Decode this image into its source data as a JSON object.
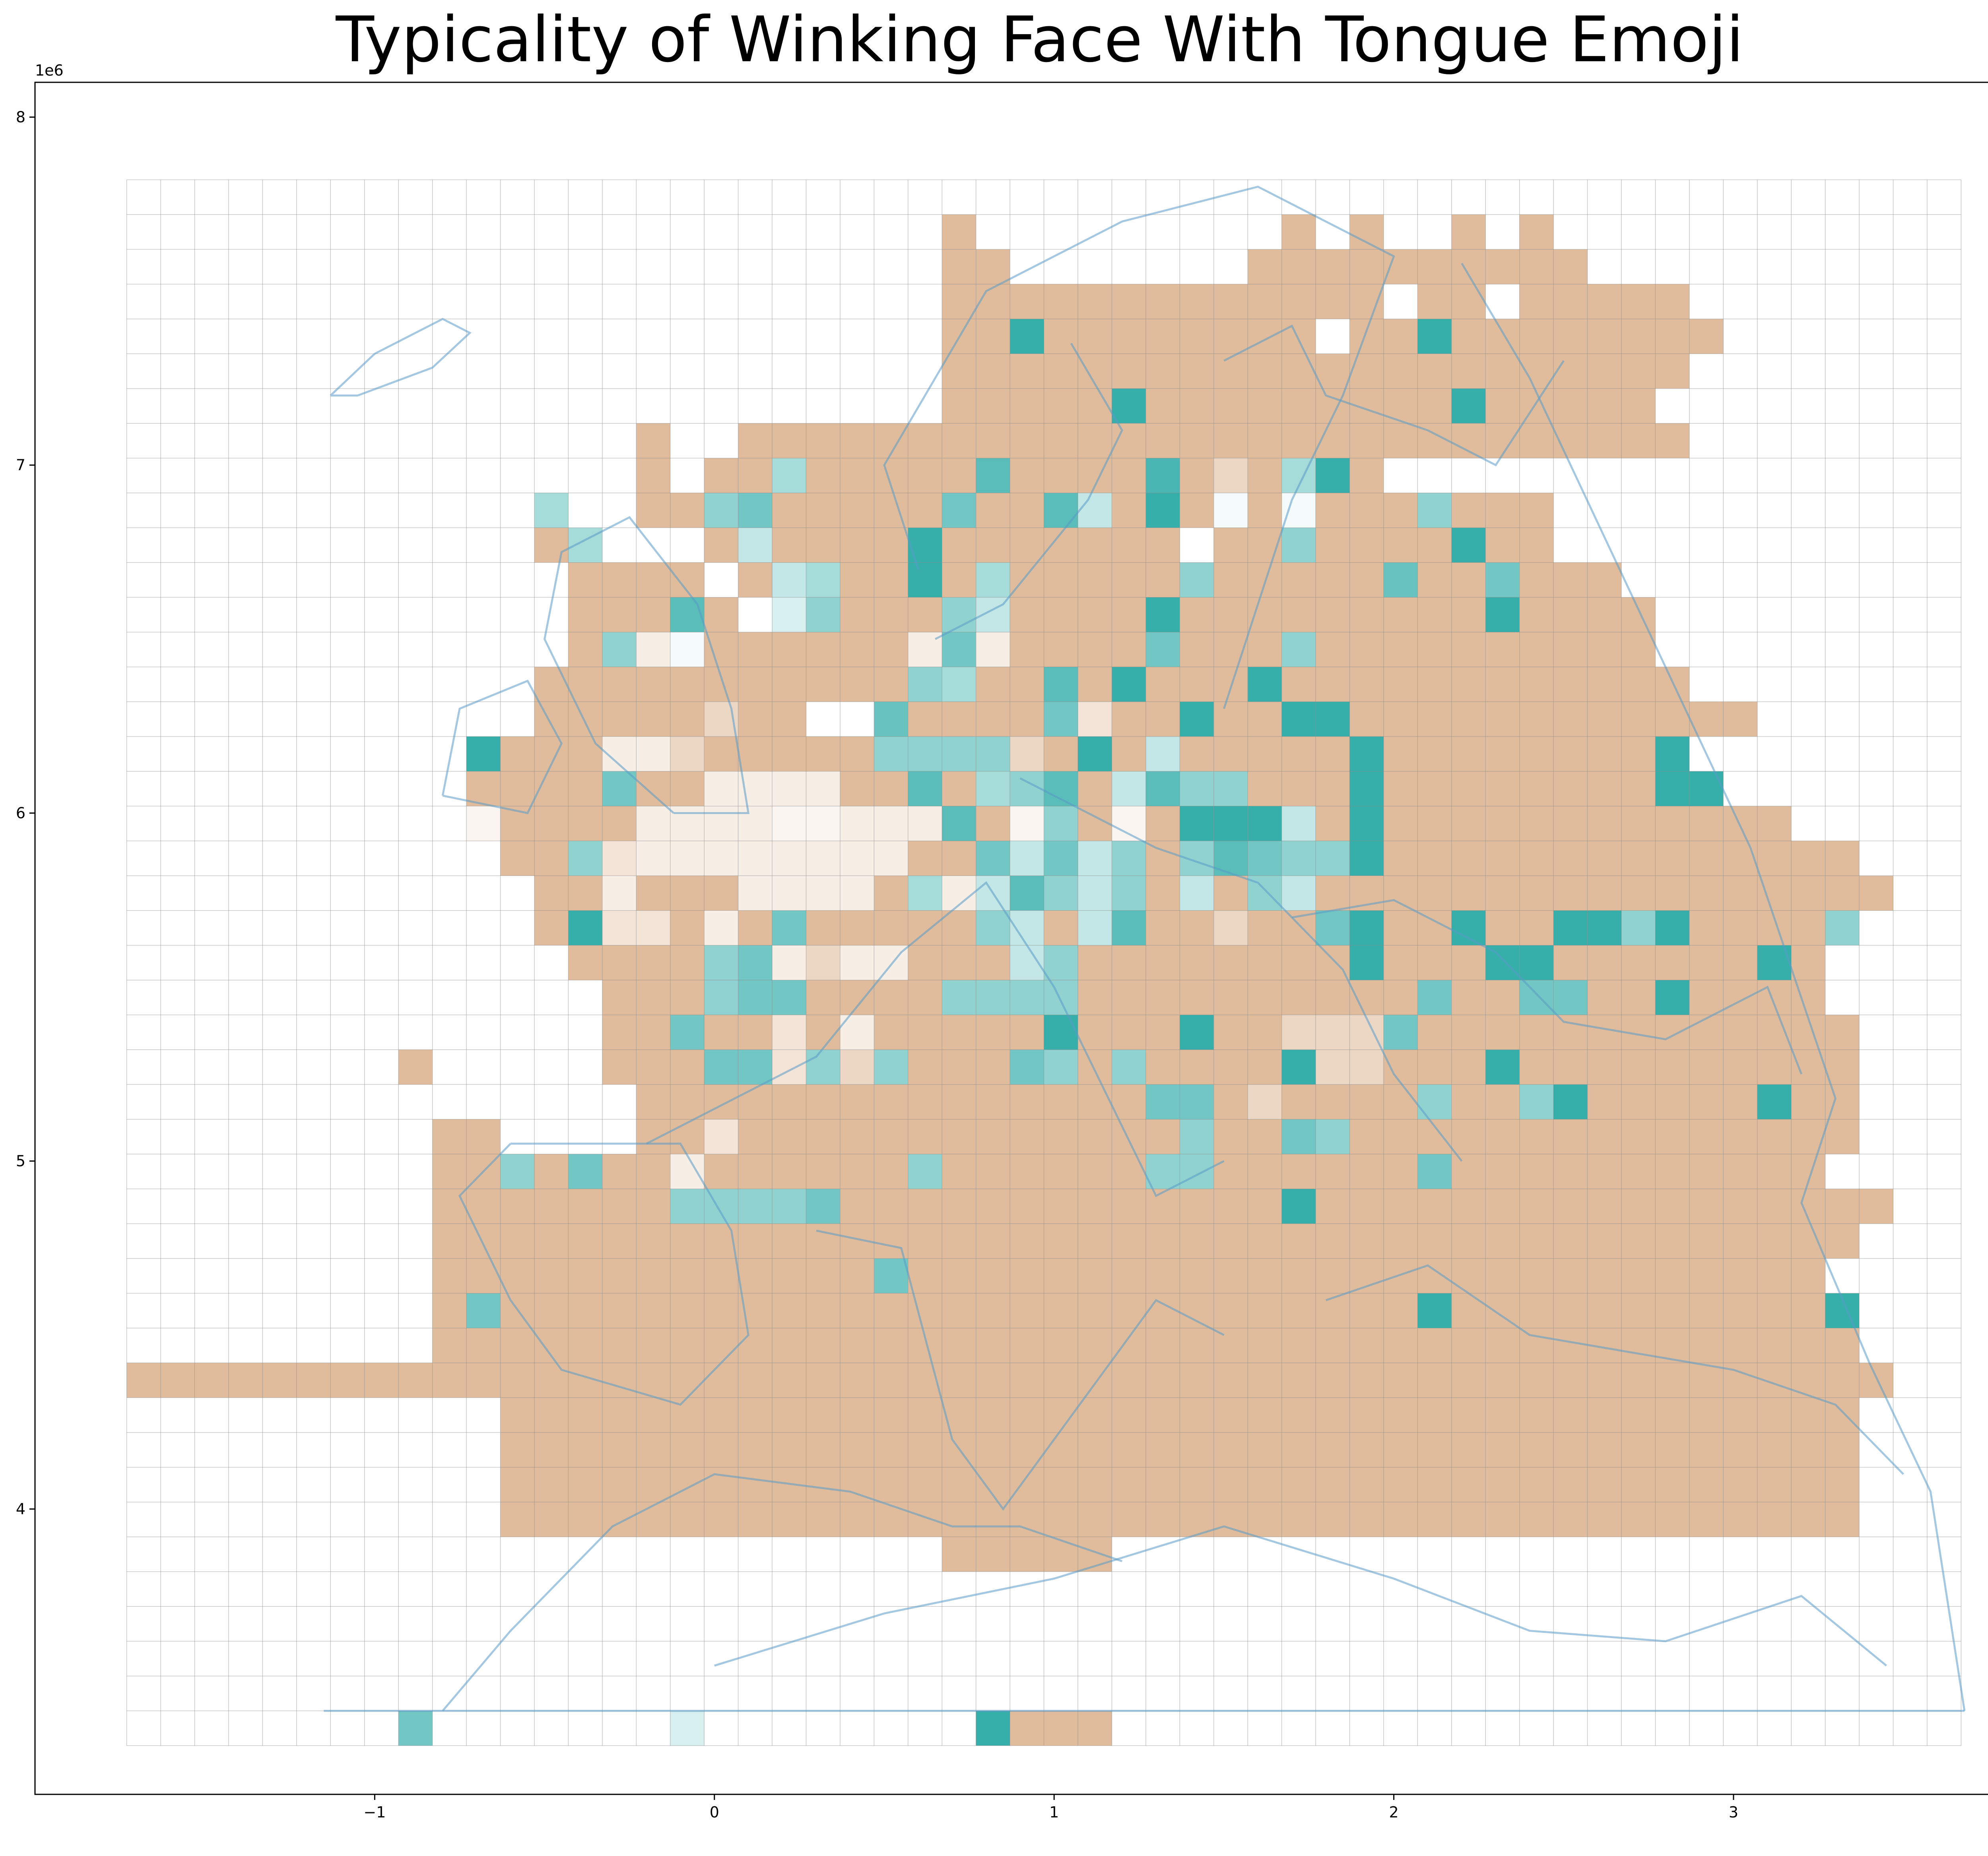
{
  "chart_data": {
    "type": "heatmap",
    "title": "Typicality of Winking Face With Tongue Emoji",
    "x_offset_label": "1e6",
    "y_offset_label": "1e6",
    "xlim": [
      -2.0,
      3.92
    ],
    "ylim": [
      3.18,
      8.1
    ],
    "x_ticks": [
      -1,
      0,
      1,
      2,
      3
    ],
    "x_tick_labels": [
      "−1",
      "0",
      "1",
      "2",
      "3"
    ],
    "y_ticks": [
      4,
      5,
      6,
      7,
      8
    ],
    "y_tick_labels": [
      "4",
      "5",
      "6",
      "7",
      "8"
    ],
    "grid": {
      "x_start": -1.73,
      "cell": 0.1,
      "ny": 45,
      "y_top": 7.82,
      "nx": 54
    },
    "color_scale": {
      "min": -1,
      "max": 1,
      "low_color": "#e0bc9c",
      "mid_color": "#ffffff",
      "high_color": "#36aeaa"
    },
    "map_color": "#5a9bc9",
    "rows": [
      "....................................................",
      "........................e.........e.e..e.e...........",
      "........................ee.......eeeeeeeeee.........",
      "........................eeeeeeeeeeeee.ee.eeeee......",
      "........................eeAeeeeeeee.eeAeeeeeeee.....",
      "........................eeeeeeeeeeeeeeeeeeeeee......",
      "........................eeeeeAeeeeeeeeeAeeeee.......",
      "...............e..eeeeeeeeeeeeeeeeeeeeeeeeeeee......",
      "...............e.eebeeeeeDeeeeFehebAe...............",
      "............b..eeBCeeeeeCeeDaeAeleleeeBeee..........",
      "............eb...eaeeeeAeeeeeee.eeBeeeeAee..........",
      ".............eeee.eabeeAebeeeeeBeeeeeEeeCeee.........",
      ".............eeeDe.jBeeeBaeeeeAeeeeeeeeeAeeee........",
      ".............eBfleeeeeefCfeeeeCeeeBeeeeeeeeee........",
      "............eeeeeeeeeeeBbeeDeAeeeAeeeeeeeeeeee.......",
      "............eeeeehee..EeeeeCdeeAeeAAeeeeeeeeeeee.....",
      "..........AeeeffheeeeeBBBBheAeaeeeeeAeeeeeeeeA.......",
      "..........eeeeCeeffffeeDebBDeaDBBeeeAeeeeeeeeAA......",
      "..........ieeeeffffiifffDeiBeieAAAaeAeeeeeeeeeeee....",
      "...........eeBdffffffffeeCaCaBeBDCBBAeeeeeeeeeeeeee..",
      "............eefeeeffffebfaDBaceaeBaeeeeeeeeeeeeeeeee.",
      "............eAddefeCeeeeeBaeaDeeheeCAeeAeeAABAeeeeB..",
      ".............eeeeBCfhffeeeaBeeeeeeeeAeeeAAeeeeeeAe...",
      "..............eeeBCCeeeeBBBBeeeeeeeeeeCeeCCeeAeeee...",
      "..............eeCeedefeeeeeAeeeAeehhhCeeeeeeeeeeeee..",
      "........e.....eeeCCdBhBeeeCBeBeeeeAhheeeAeeeeeeeeee..",
      "...............eeeeeeeeeeeeeeeCCeheeeeBeeBAeeeeeAee..",
      ".........ee....eedeeeeeeeeeeeeeBeeCBeeeeeeeeeeeeeee..",
      ".........eeBeCeefeeeeeeBeeeeeeBBeeeeeeCeeeeeeeeeee...",
      ".........eeeeeeeBBBBCeeeeeeeeeeeeeAeeeeeeeeeeeeeeeee..",
      ".........eeeeeeeeeeeeeeeeeeeeeeeeeeeeeeeeeeeeeeeeee..",
      ".........eeeeeeeeeeeeeCeeeeeeeeeeeeeeeeeeeeeeeeeee...",
      ".........eCeeeeeeeeeeeeeeeeeeeeeeeeeeeAeeeeeeeeeeeA..",
      ".........eeeeeeeeeeeeeeeeeeeeeeeeeeeeeeeeeeeeeeeeee..",
      "eeeeeeeeeeeeeeeeeeeeeeeeeeeeeeeeeeeeeeeeeeeeeeeeeeee.",
      "...........eeeeeeeeeeeeeeeeeeeeeeeeeeeeeeeeeeeeeeee..",
      "...........eeeeeeeeeeeeeeeeeeeeeeeeeeeeeeeeeeeeeeee..",
      "...........eeeeeeeeeeeeeeeeeeeeeeeeeeeeeeeeeeeeeeee..",
      "...........eeeeeeeeeeeeeeeeeeeeeeeeeeeeeeeeeeeeeeee..",
      "........................eeeee........................",
      ".....................................................",
      ".....................................................",
      ".....................................................",
      ".....................................................",
      "........C.......j........Aeee........................"
    ]
  }
}
